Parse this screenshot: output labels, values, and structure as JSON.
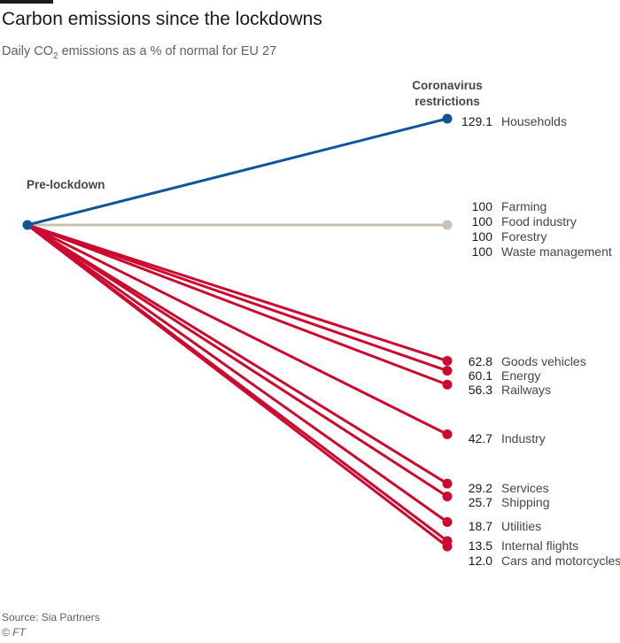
{
  "header": {
    "title": "Carbon emissions since the lockdowns",
    "subtitle_pre": "Daily CO",
    "subtitle_sub": "2",
    "subtitle_post": " emissions as a % of normal for EU 27"
  },
  "footer": {
    "source": "Source: Sia Partners",
    "copyright": "© FT"
  },
  "colors": {
    "increase": "#0f5499",
    "unchanged": "#ccc1b7",
    "decrease": "#cc0a2f"
  },
  "chart_data": {
    "type": "slope",
    "start_label": "Pre-lockdown",
    "end_label_lines": [
      "Coronavirus",
      "restrictions"
    ],
    "start_value": 100,
    "series": [
      {
        "name": "Households",
        "start": 100,
        "end": 129.1,
        "value_label": "129.1"
      },
      {
        "name": "Farming",
        "start": 100,
        "end": 100,
        "value_label": "100"
      },
      {
        "name": "Food industry",
        "start": 100,
        "end": 100,
        "value_label": "100"
      },
      {
        "name": "Forestry",
        "start": 100,
        "end": 100,
        "value_label": "100"
      },
      {
        "name": "Waste management",
        "start": 100,
        "end": 100,
        "value_label": "100"
      },
      {
        "name": "Goods vehicles",
        "start": 100,
        "end": 62.8,
        "value_label": "62.8"
      },
      {
        "name": "Energy",
        "start": 100,
        "end": 60.1,
        "value_label": "60.1"
      },
      {
        "name": "Railways",
        "start": 100,
        "end": 56.3,
        "value_label": "56.3"
      },
      {
        "name": "Industry",
        "start": 100,
        "end": 42.7,
        "value_label": "42.7"
      },
      {
        "name": "Services",
        "start": 100,
        "end": 29.2,
        "value_label": "29.2"
      },
      {
        "name": "Shipping",
        "start": 100,
        "end": 25.7,
        "value_label": "25.7"
      },
      {
        "name": "Utilities",
        "start": 100,
        "end": 18.7,
        "value_label": "18.7"
      },
      {
        "name": "Internal flights",
        "start": 100,
        "end": 13.5,
        "value_label": "13.5"
      },
      {
        "name": "Cars and motorcycles",
        "start": 100,
        "end": 12.0,
        "value_label": "12.0"
      }
    ]
  }
}
